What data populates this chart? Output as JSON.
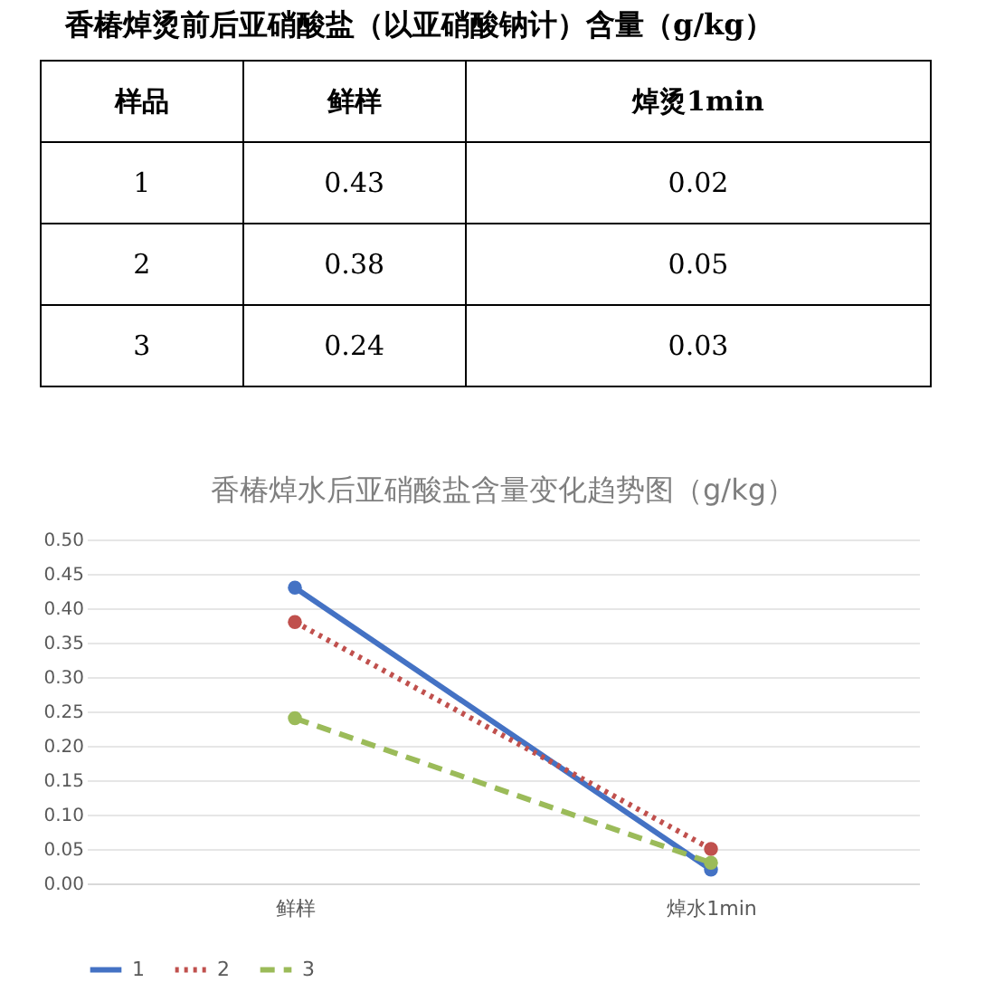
{
  "chart_data": [
    {
      "type": "other",
      "title": "香椿焯烫前后亚硝酸盐（以亚硝酸钠计）含量（g/kg）",
      "legend_title": "样品",
      "categories": [
        "鲜样",
        "焯烫1min"
      ],
      "y_categories": [
        "1",
        "2",
        "3"
      ],
      "cell_labels": [
        [
          "0.43",
          "0.02"
        ],
        [
          "0.38",
          "0.05"
        ],
        [
          "0.24",
          "0.03"
        ]
      ]
    },
    {
      "type": "line",
      "title": "香椿焯水后亚硝酸盐含量变化趋势图（g/kg）",
      "categories": [
        "鲜样",
        "焯水1min"
      ],
      "series": [
        {
          "name": "1",
          "color": "#4472c4",
          "values": [
            0.43,
            0.02
          ],
          "line_style": "solid"
        },
        {
          "name": "2",
          "color": "#c0504d",
          "values": [
            0.38,
            0.05
          ],
          "line_style": "dotted"
        },
        {
          "name": "3",
          "color": "#9bbb59",
          "values": [
            0.24,
            0.03
          ],
          "line_style": "dashed"
        }
      ],
      "ylim": [
        0,
        0.5
      ],
      "yticks": [
        {
          "value": 0,
          "label": "0.00"
        },
        {
          "value": 0.05,
          "label": "0.05"
        },
        {
          "value": 0.1,
          "label": "0.10"
        },
        {
          "value": 0.15,
          "label": "0.15"
        },
        {
          "value": 0.2,
          "label": "0.20"
        },
        {
          "value": 0.25,
          "label": "0.25"
        },
        {
          "value": 0.3,
          "label": "0.30"
        },
        {
          "value": 0.35,
          "label": "0.35"
        },
        {
          "value": 0.4,
          "label": "0.40"
        },
        {
          "value": 0.45,
          "label": "0.45"
        },
        {
          "value": 0.5,
          "label": "0.50"
        }
      ],
      "grid": "y",
      "legend": "bottom",
      "marker": "circle"
    }
  ]
}
